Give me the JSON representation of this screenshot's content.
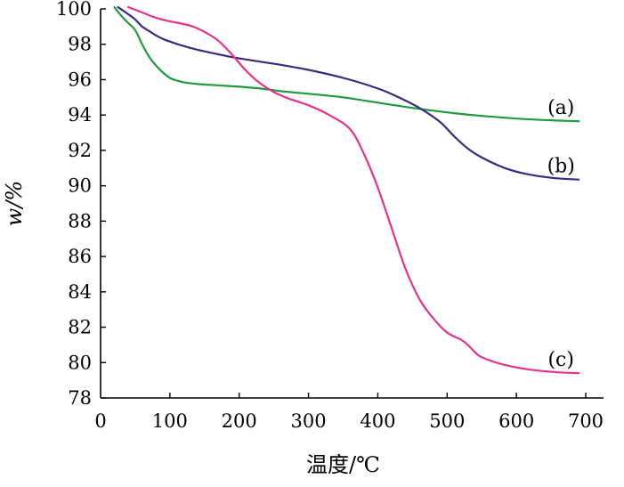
{
  "chart_data": {
    "type": "line",
    "xlabel": "温度/℃",
    "ylabel": "w/%",
    "xlim": [
      0,
      700
    ],
    "ylim": [
      78,
      100
    ],
    "xticks": [
      0,
      100,
      200,
      300,
      400,
      500,
      600,
      700
    ],
    "yticks": [
      78,
      80,
      82,
      84,
      86,
      88,
      90,
      92,
      94,
      96,
      98,
      100
    ],
    "grid": false,
    "series": [
      {
        "name": "(a)",
        "color": "#1f9a3e",
        "x": [
          20,
          30,
          40,
          50,
          60,
          70,
          80,
          90,
          100,
          110,
          120,
          140,
          160,
          180,
          200,
          230,
          260,
          300,
          350,
          400,
          450,
          500,
          550,
          600,
          650,
          690
        ],
        "y": [
          100.1,
          99.6,
          99.2,
          98.8,
          98.0,
          97.3,
          96.8,
          96.4,
          96.1,
          95.95,
          95.85,
          95.75,
          95.7,
          95.65,
          95.6,
          95.5,
          95.35,
          95.2,
          95.0,
          94.7,
          94.4,
          94.15,
          93.95,
          93.8,
          93.7,
          93.65
        ]
      },
      {
        "name": "(b)",
        "color": "#3a2a80",
        "x": [
          25,
          40,
          50,
          60,
          70,
          80,
          90,
          100,
          120,
          150,
          200,
          250,
          300,
          350,
          400,
          430,
          460,
          490,
          510,
          530,
          550,
          580,
          610,
          650,
          690
        ],
        "y": [
          100.1,
          99.7,
          99.4,
          99.0,
          98.75,
          98.5,
          98.3,
          98.15,
          97.9,
          97.6,
          97.2,
          96.9,
          96.55,
          96.1,
          95.5,
          95.0,
          94.4,
          93.6,
          92.8,
          92.1,
          91.6,
          91.05,
          90.7,
          90.45,
          90.35
        ]
      },
      {
        "name": "(c)",
        "color": "#e5338a",
        "x": [
          40,
          60,
          80,
          100,
          130,
          150,
          170,
          190,
          210,
          230,
          250,
          270,
          300,
          330,
          360,
          380,
          400,
          420,
          440,
          460,
          480,
          500,
          520,
          530,
          540,
          550,
          580,
          620,
          660,
          690
        ],
        "y": [
          100.1,
          99.8,
          99.5,
          99.3,
          99.05,
          98.7,
          98.2,
          97.4,
          96.5,
          95.8,
          95.3,
          94.95,
          94.55,
          94.0,
          93.2,
          91.8,
          89.9,
          87.6,
          85.3,
          83.6,
          82.5,
          81.7,
          81.3,
          81.0,
          80.6,
          80.3,
          79.9,
          79.6,
          79.45,
          79.4
        ]
      }
    ]
  }
}
